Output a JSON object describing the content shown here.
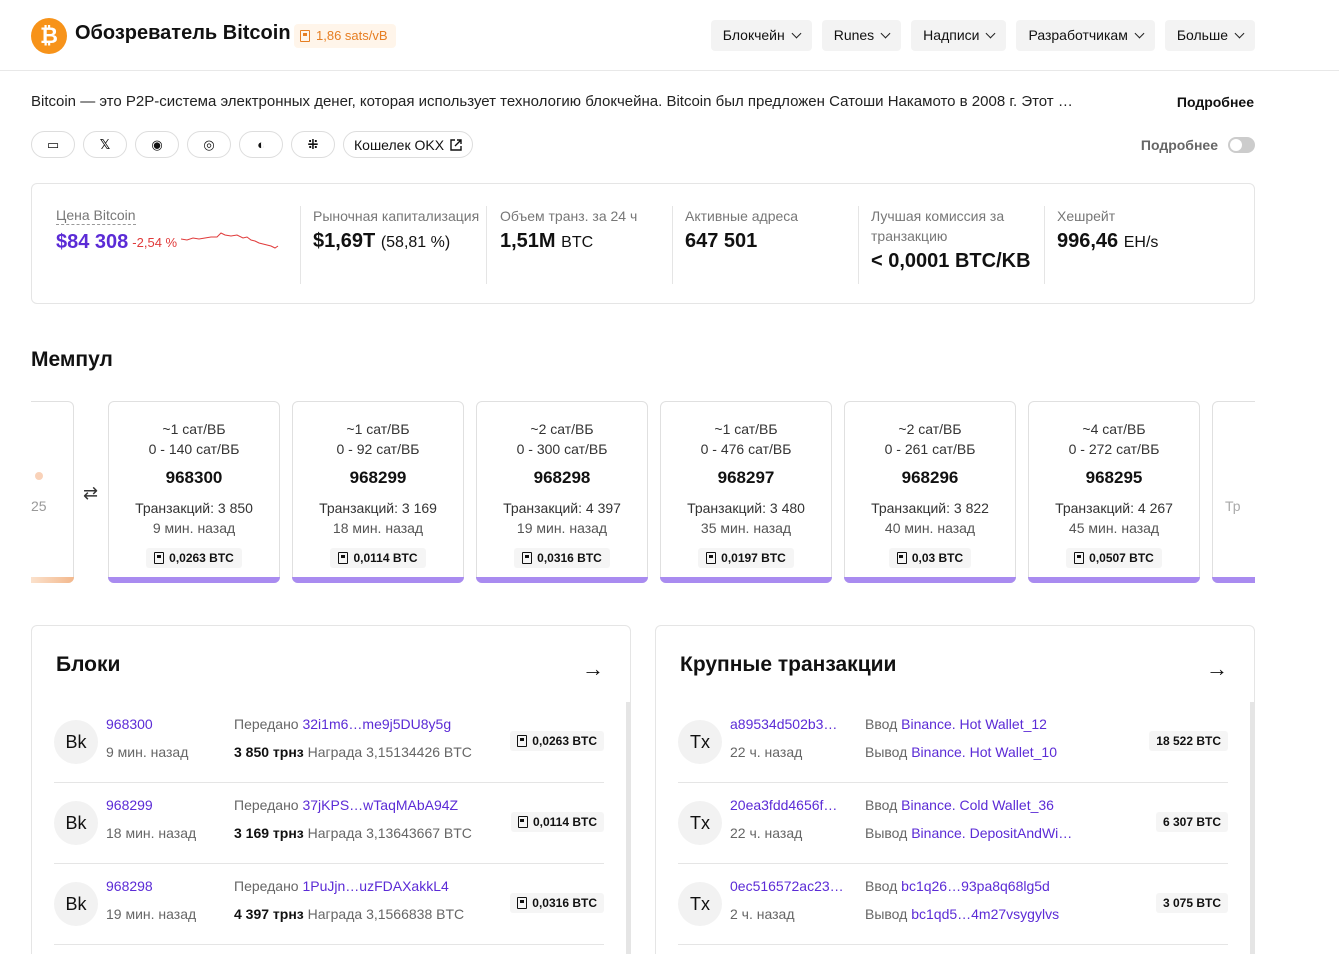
{
  "header": {
    "logo": "₿",
    "title": "Обозреватель Bitcoin",
    "fee_badge": "1,86 sats/vB",
    "nav": [
      "Блокчейн",
      "Runes",
      "Надписи",
      "Разработчикам",
      "Больше"
    ]
  },
  "intro": {
    "description": "Bitcoin — это P2P-система электронных денег, которая использует технологию блокчейна. Bitcoin был предложен Сатоши Накамото в 2008 г. Этот …",
    "more": "Подробнее",
    "social": [
      "▭",
      "𝕏",
      "◉",
      "◎",
      "◐",
      "⁜"
    ],
    "wallet": "Кошелек OKX",
    "toggle_label": "Подробнее"
  },
  "stats": {
    "price_label": "Цена Bitcoin",
    "price": "$84 308",
    "price_change": "-2,54 %",
    "cap_label": "Рыночная капитализация",
    "cap_value": "$1,69T",
    "cap_pct": "(58,81 %)",
    "vol_label": "Объем транз. за 24 ч",
    "vol_value": "1,51M",
    "vol_unit": "BTC",
    "addr_label": "Активные адреса",
    "addr_value": "647 501",
    "fee_label": "Лучшая комиссия за транзакцию",
    "fee_value": "< 0,0001 BTC/KB",
    "hash_label": "Хешрейт",
    "hash_value": "996,46",
    "hash_unit": "EH/s"
  },
  "mempool": {
    "title": "Мемпул",
    "left_partial": "25",
    "right_partial": "Тр",
    "blocks": [
      {
        "fee": "~1 сат/ВБ",
        "range": "0 - 140 сат/ВБ",
        "height": "968300",
        "tx": "Транзакций: 3 850",
        "time": "9 мин. назад",
        "reward": "0,0263 BTC"
      },
      {
        "fee": "~1 сат/ВБ",
        "range": "0 - 92 сат/ВБ",
        "height": "968299",
        "tx": "Транзакций: 3 169",
        "time": "18 мин. назад",
        "reward": "0,0114 BTC"
      },
      {
        "fee": "~2 сат/ВБ",
        "range": "0 - 300 сат/ВБ",
        "height": "968298",
        "tx": "Транзакций: 4 397",
        "time": "19 мин. назад",
        "reward": "0,0316 BTC"
      },
      {
        "fee": "~1 сат/ВБ",
        "range": "0 - 476 сат/ВБ",
        "height": "968297",
        "tx": "Транзакций: 3 480",
        "time": "35 мин. назад",
        "reward": "0,0197 BTC"
      },
      {
        "fee": "~2 сат/ВБ",
        "range": "0 - 261 сат/ВБ",
        "height": "968296",
        "tx": "Транзакций: 3 822",
        "time": "40 мин. назад",
        "reward": "0,03 BTC"
      },
      {
        "fee": "~4 сат/ВБ",
        "range": "0 - 272 сат/ВБ",
        "height": "968295",
        "tx": "Транзакций: 4 267",
        "time": "45 мин. назад",
        "reward": "0,0507 BTC"
      }
    ]
  },
  "blocks_panel": {
    "title": "Блоки",
    "arrow": "→",
    "rows": [
      {
        "avatar": "Bk",
        "height": "968300",
        "time": "9 мин. назад",
        "miner_label": "Передано",
        "miner": "32i1m6…me9j5DU8y5g",
        "tx": "3 850 трнз",
        "reward_label": "Награда",
        "reward": "3,15134426 BTC",
        "fee": "0,0263 BTC"
      },
      {
        "avatar": "Bk",
        "height": "968299",
        "time": "18 мин. назад",
        "miner_label": "Передано",
        "miner": "37jKPS…wTaqMAbA94Z",
        "tx": "3 169 трнз",
        "reward_label": "Награда",
        "reward": "3,13643667 BTC",
        "fee": "0,0114 BTC"
      },
      {
        "avatar": "Bk",
        "height": "968298",
        "time": "19 мин. назад",
        "miner_label": "Передано",
        "miner": "1PuJjn…uzFDAXakkL4",
        "tx": "4 397 трнз",
        "reward_label": "Награда",
        "reward": "3,1566838 BTC",
        "fee": "0,0316 BTC"
      }
    ]
  },
  "tx_panel": {
    "title": "Крупные транзакции",
    "arrow": "→",
    "rows": [
      {
        "avatar": "Tx",
        "hash": "a89534d502b3…",
        "time": "22 ч. назад",
        "in_label": "Ввод",
        "in": "Binance. Hot Wallet_12",
        "out_label": "Вывод",
        "out": "Binance. Hot Wallet_10",
        "amount": "18 522 BTC"
      },
      {
        "avatar": "Tx",
        "hash": "20ea3fdd4656f…",
        "time": "22 ч. назад",
        "in_label": "Ввод",
        "in": "Binance. Cold Wallet_36",
        "out_label": "Вывод",
        "out": "Binance. DepositAndWi…",
        "amount": "6 307 BTC"
      },
      {
        "avatar": "Tx",
        "hash": "0ec516572ac23…",
        "time": "2 ч. назад",
        "in_label": "Ввод",
        "in": "bc1q26…93pa8q68lg5d",
        "out_label": "Вывод",
        "out": "bc1qd5…4m27vsygylvs",
        "amount": "3 075 BTC"
      }
    ]
  },
  "colors": {
    "accent": "#5b2bd6",
    "bitcoin": "#f7931a",
    "negative": "#e03a3a",
    "block_bar": "#a98bf0"
  }
}
